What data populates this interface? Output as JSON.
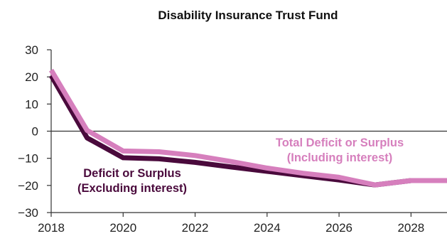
{
  "chart_data": {
    "type": "line",
    "title": "Disability Insurance Trust Fund",
    "xlabel": "",
    "ylabel": "",
    "xlim": [
      2018,
      2029
    ],
    "ylim": [
      -30,
      30
    ],
    "x_ticks": [
      2018,
      2020,
      2022,
      2024,
      2026,
      2028
    ],
    "y_ticks": [
      30,
      20,
      10,
      0,
      -10,
      -20,
      -30
    ],
    "x_tick_labels": [
      "2018",
      "2020",
      "2022",
      "2024",
      "2026",
      "2028"
    ],
    "y_tick_labels": [
      "30",
      "20",
      "10",
      "0",
      "−10",
      "−20",
      "−30"
    ],
    "grid": false,
    "zero_line": true,
    "x": [
      2018,
      2019,
      2020,
      2021,
      2022,
      2023,
      2024,
      2025,
      2026,
      2027,
      2028,
      2029
    ],
    "series": [
      {
        "key": "including",
        "label_lines": [
          "Total Deficit or Surplus",
          "(Including interest)"
        ],
        "color": "#d67fbd",
        "values": [
          22.5,
          0.3,
          -7.3,
          -7.6,
          -9.0,
          -11.2,
          -13.6,
          -15.5,
          -17.0,
          -19.8,
          -18.2,
          -18.2
        ]
      },
      {
        "key": "excluding",
        "label_lines": [
          "Deficit or Surplus",
          "(Excluding interest)"
        ],
        "color": "#4a0a3c",
        "values": [
          20.5,
          -2.5,
          -9.8,
          -10.2,
          -11.5,
          -13.2,
          -14.8,
          -16.4,
          -18.0,
          -19.8,
          -18.2,
          -18.2
        ]
      }
    ]
  }
}
